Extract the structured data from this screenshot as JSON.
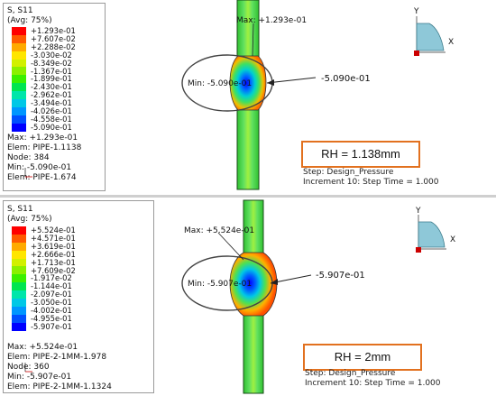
{
  "top": {
    "title": "S, S11",
    "avg": "(Avg: 75%)",
    "legend": [
      "+1.293e-01",
      "+7.607e-02",
      "+2.288e-02",
      "-3.030e-02",
      "-8.349e-02",
      "-1.367e-01",
      "-1.899e-01",
      "-2.430e-01",
      "-2.962e-01",
      "-3.494e-01",
      "-4.026e-01",
      "-4.558e-01",
      "-5.090e-01"
    ],
    "max_line": "Max: +1.293e-01",
    "max_elem": "Elem: PIPE-1.1138",
    "max_node": "Node: 384",
    "min_line": "Min: -5.090e-01",
    "min_elem": "Elem: PIPE-1.674",
    "max_label": "Max: +1.293e-01",
    "min_label": "Min: -5.090e-01",
    "callout": "-5.090e-01",
    "rh": "RH = 1.138mm",
    "step_line": "Step: Design_Pressure",
    "increment_line": "Increment    10: Step Time =    1.000"
  },
  "bottom": {
    "title": "S, S11",
    "avg": "(Avg: 75%)",
    "legend": [
      "+5.524e-01",
      "+4.571e-01",
      "+3.619e-01",
      "+2.666e-01",
      "+1.713e-01",
      "+7.609e-02",
      "-1.917e-02",
      "-1.144e-01",
      "-2.097e-01",
      "-3.050e-01",
      "-4.002e-01",
      "-4.955e-01",
      "-5.907e-01"
    ],
    "max_line": "Max: +5.524e-01",
    "max_elem": "Elem: PIPE-2-1MM-1.978",
    "max_node": "Node: 360",
    "min_line": "Min: -5.907e-01",
    "min_elem": "Elem: PIPE-2-1MM-1.1324",
    "max_label": "Max: +5.524e-01",
    "min_label": "Min: -5.907e-01",
    "callout": "-5.907e-01",
    "rh": "RH = 2mm",
    "step_line": "Step: Design_Pressure",
    "increment_line": "Increment    10: Step Time =    1.000"
  },
  "triad": {
    "y_label": "Y",
    "x_label": "X"
  },
  "colors": [
    "#ff0000",
    "#ff5a00",
    "#ffaa00",
    "#ffe600",
    "#d2f000",
    "#8cf000",
    "#3cf000",
    "#00e650",
    "#00e6aa",
    "#00c8e6",
    "#0096ff",
    "#0050ff",
    "#0000ff"
  ],
  "rh_border": "#e2711f"
}
